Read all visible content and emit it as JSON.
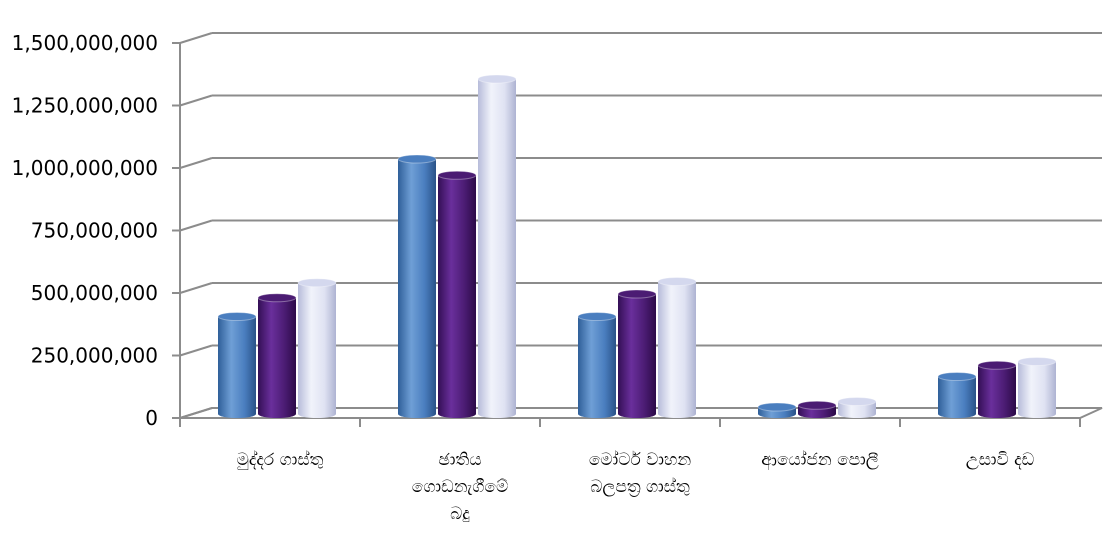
{
  "chart_data": {
    "type": "bar",
    "title": "",
    "xlabel": "",
    "ylabel": "",
    "ylim": [
      0,
      1500000000
    ],
    "y_ticks": [
      0,
      250000000,
      500000000,
      750000000,
      1000000000,
      1250000000,
      1500000000
    ],
    "y_tick_labels": [
      "0",
      "250,000,000",
      "500,000,000",
      "750,000,000",
      "1,000,000,000",
      "1,250,000,000",
      "1,500,000,000"
    ],
    "categories": [
      [
        "මුද්දර ගාස්තු"
      ],
      [
        "ඡාතිය",
        "ගොඩනැගීමේ",
        "බදු"
      ],
      [
        "මෝටර් වාහන",
        "බලපත්‍ර ගාස්තු"
      ],
      [
        "ආයෝජන පොලී"
      ],
      [
        "උසාවි දඩ"
      ]
    ],
    "series": [
      {
        "values": [
          390000000,
          1020000000,
          390000000,
          28000000,
          150000000
        ],
        "color": "#4a7ebf"
      },
      {
        "values": [
          465000000,
          955000000,
          480000000,
          35000000,
          195000000
        ],
        "color": "#4b1c73"
      },
      {
        "values": [
          525000000,
          1340000000,
          530000000,
          50000000,
          210000000
        ],
        "color": "#d4d8ee"
      }
    ],
    "grid": true,
    "legend": "none",
    "style": "3d-cylinder"
  }
}
